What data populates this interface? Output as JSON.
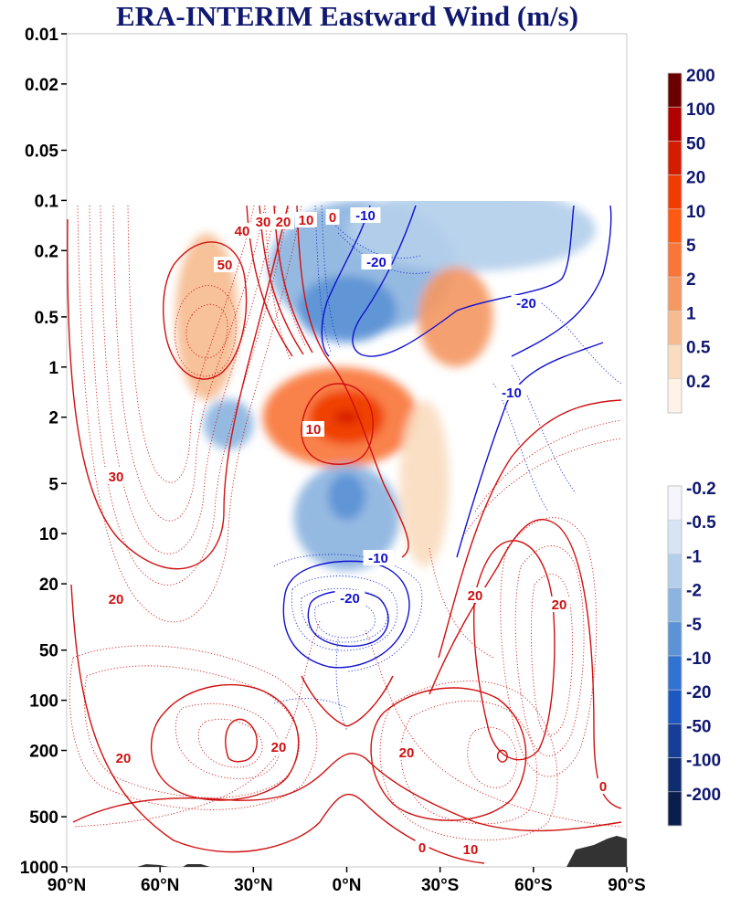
{
  "chart_data": {
    "type": "contour",
    "title": "ERA-INTERIM Eastward Wind (m/s)",
    "xlabel": "",
    "ylabel": "",
    "x_axis": {
      "ticks": [
        "90°N",
        "60°N",
        "30°N",
        "0°N",
        "30°S",
        "60°S",
        "90°S"
      ],
      "range": [
        90,
        -90
      ]
    },
    "y_axis": {
      "scale": "log",
      "inverted": true,
      "ticks": [
        "0.01",
        "0.02",
        "0.05",
        "0.1",
        "0.2",
        "0.5",
        "1",
        "2",
        "5",
        "10",
        "20",
        "50",
        "100",
        "200",
        "500",
        "1000"
      ],
      "range": [
        0.01,
        1000
      ]
    },
    "data_top_hPa": 0.1,
    "filled_colorbar_positive": {
      "labels": [
        "200",
        "100",
        "50",
        "20",
        "10",
        "5",
        "2",
        "1",
        "0.5",
        "0.2"
      ],
      "colors": [
        "#6b0000",
        "#b00000",
        "#d41c00",
        "#f03c00",
        "#ff5a14",
        "#f8763a",
        "#f49864",
        "#f6bc90",
        "#fadcc0",
        "#fff3e8"
      ]
    },
    "filled_colorbar_negative": {
      "labels": [
        "-0.2",
        "-0.5",
        "-1",
        "-2",
        "-5",
        "-10",
        "-20",
        "-50",
        "-100",
        "-200"
      ],
      "colors": [
        "#f4f6fc",
        "#d6e4f4",
        "#b4cfec",
        "#8cb4e0",
        "#5c92d6",
        "#3272d2",
        "#1c58c0",
        "#163e96",
        "#0f2c6e",
        "#0a1e4c"
      ]
    },
    "line_contour_labels_red": [
      "40",
      "30",
      "20",
      "10",
      "0",
      "50",
      "30",
      "20",
      "20",
      "10",
      "20",
      "20",
      "0",
      "20",
      "20",
      "0",
      "10",
      "0"
    ],
    "line_contour_labels_blue": [
      "-10",
      "-20",
      "-20",
      "-10",
      "-10",
      "-20"
    ],
    "anomaly_fields": [
      {
        "sign": "neg",
        "level": 2,
        "lat": -5,
        "p": 0.25,
        "rx_deg": 30,
        "ry_dec": 0.4
      },
      {
        "sign": "neg",
        "level": 5,
        "lat": 0,
        "p": 0.45,
        "rx_deg": 16,
        "ry_dec": 0.2
      },
      {
        "sign": "neg",
        "level": 1,
        "lat": -40,
        "p": 0.15,
        "rx_deg": 40,
        "ry_dec": 0.25
      },
      {
        "sign": "pos",
        "level": 2,
        "lat": -35,
        "p": 0.5,
        "rx_deg": 12,
        "ry_dec": 0.3
      },
      {
        "sign": "pos",
        "level": 1,
        "lat": 45,
        "p": 0.5,
        "rx_deg": 10,
        "ry_dec": 0.5
      },
      {
        "sign": "pos",
        "level": 5,
        "lat": 2,
        "p": 2.0,
        "rx_deg": 25,
        "ry_dec": 0.3
      },
      {
        "sign": "pos",
        "level": 20,
        "lat": 0,
        "p": 2.0,
        "rx_deg": 12,
        "ry_dec": 0.16
      },
      {
        "sign": "pos",
        "level": 50,
        "lat": 0,
        "p": 2.0,
        "rx_deg": 4,
        "ry_dec": 0.04
      },
      {
        "sign": "neg",
        "level": 2,
        "lat": 0,
        "p": 8,
        "rx_deg": 17,
        "ry_dec": 0.32
      },
      {
        "sign": "neg",
        "level": 5,
        "lat": 0,
        "p": 6,
        "rx_deg": 6,
        "ry_dec": 0.14
      },
      {
        "sign": "neg",
        "level": 2,
        "lat": 38,
        "p": 2.2,
        "rx_deg": 8,
        "ry_dec": 0.15
      },
      {
        "sign": "pos",
        "level": 0.5,
        "lat": -25,
        "p": 5,
        "rx_deg": 8,
        "ry_dec": 0.5
      }
    ]
  }
}
